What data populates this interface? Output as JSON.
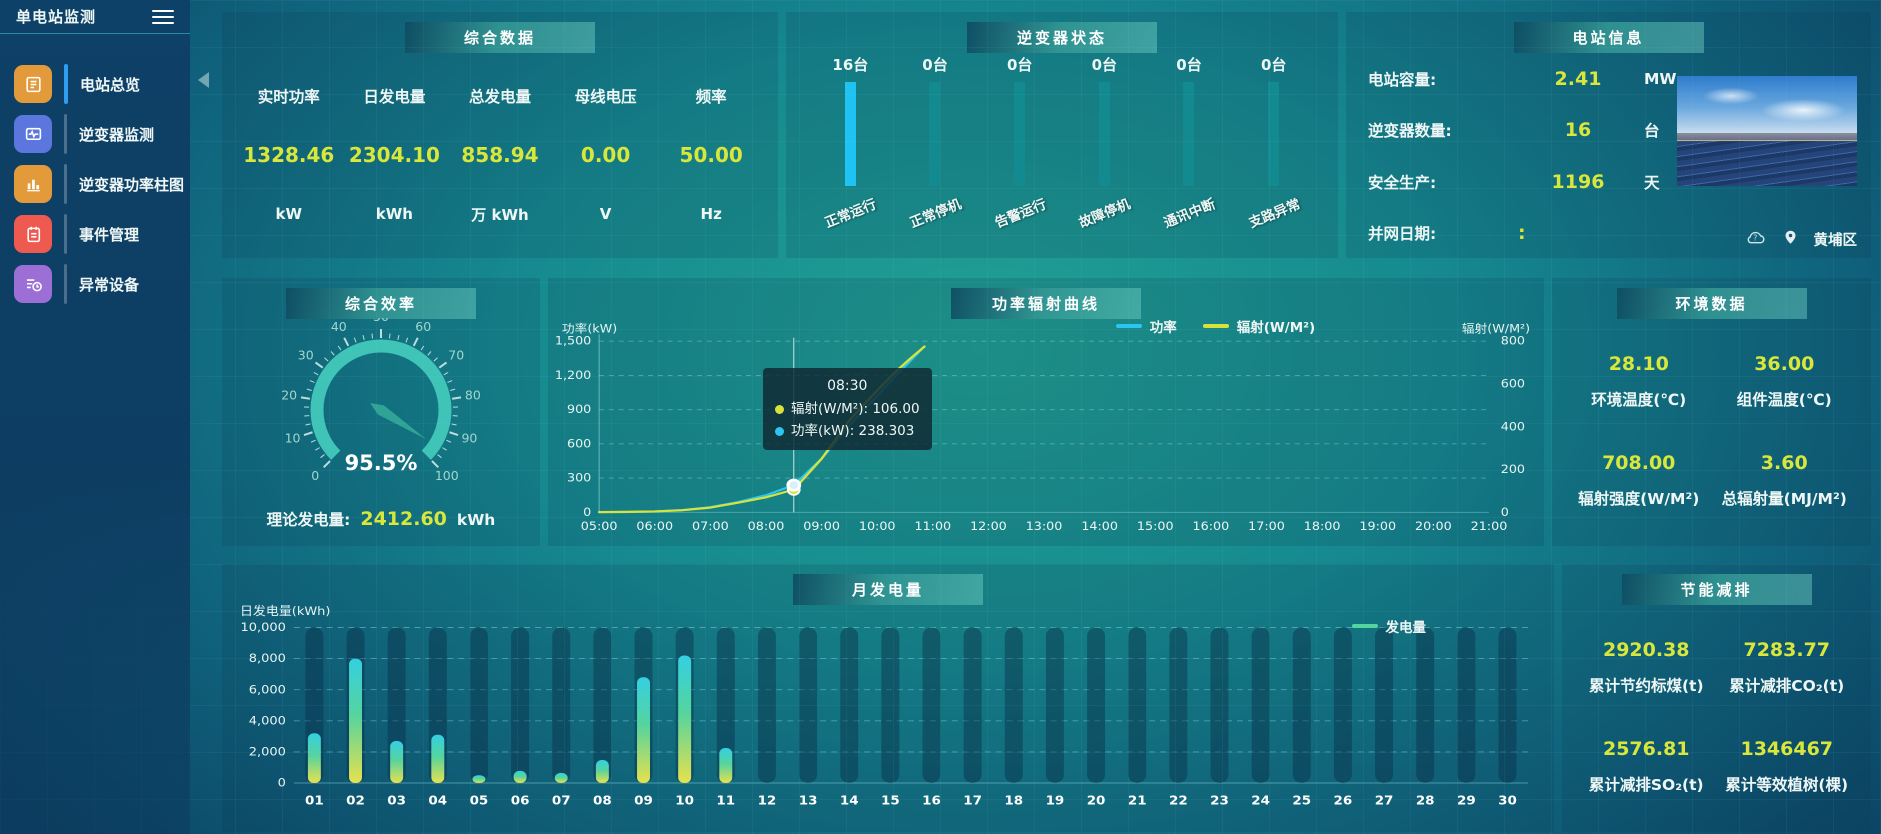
{
  "app": {
    "title": "单电站监测"
  },
  "sidebar": {
    "items": [
      {
        "label": "电站总览",
        "icon": "report-icon",
        "active": true
      },
      {
        "label": "逆变器监测",
        "icon": "monitor-wave-icon",
        "active": false
      },
      {
        "label": "逆变器功率柱图",
        "icon": "bar-chart-icon",
        "active": false
      },
      {
        "label": "事件管理",
        "icon": "notebook-icon",
        "active": false
      },
      {
        "label": "异常设备",
        "icon": "list-clock-icon",
        "active": false
      }
    ]
  },
  "colors": {
    "value_yellow": "#d9e73b",
    "inverter_highlight": "#1fc3f3",
    "inverter_normal": "#128a90",
    "sidebar_active": "#2f9df0"
  },
  "summary": {
    "title": "综合数据",
    "stats": [
      {
        "label": "实时功率",
        "value": "1328.46",
        "unit": "kW"
      },
      {
        "label": "日发电量",
        "value": "2304.10",
        "unit": "kWh"
      },
      {
        "label": "总发电量",
        "value": "858.94",
        "unit": "万 kWh"
      },
      {
        "label": "母线电压",
        "value": "0.00",
        "unit": "V"
      },
      {
        "label": "频率",
        "value": "50.00",
        "unit": "Hz"
      }
    ]
  },
  "inverter_status": {
    "title": "逆变器状态",
    "bars": [
      {
        "count": "16台",
        "label": "正常运行",
        "highlight": true
      },
      {
        "count": "0台",
        "label": "正常停机",
        "highlight": false
      },
      {
        "count": "0台",
        "label": "告警运行",
        "highlight": false
      },
      {
        "count": "0台",
        "label": "故障停机",
        "highlight": false
      },
      {
        "count": "0台",
        "label": "通讯中断",
        "highlight": false
      },
      {
        "count": "0台",
        "label": "支路异常",
        "highlight": false
      }
    ]
  },
  "station_info": {
    "title": "电站信息",
    "rows": [
      {
        "label": "电站容量:",
        "value": "2.41",
        "unit": "MW"
      },
      {
        "label": "逆变器数量:",
        "value": "16",
        "unit": "台"
      },
      {
        "label": "安全生产:",
        "value": "1196",
        "unit": "天"
      },
      {
        "label": "并网日期:",
        "value": ":",
        "unit": ""
      }
    ],
    "weather_icon": "cloud-unknown-icon",
    "location_icon": "location-pin-icon",
    "location": "黄埔区"
  },
  "efficiency": {
    "title": "综合效率",
    "footer_label": "理论发电量:",
    "footer_value": "2412.60",
    "footer_unit": "kWh"
  },
  "power_curve": {
    "title": "功率辐射曲线"
  },
  "environment": {
    "title": "环境数据",
    "stats": [
      {
        "value": "28.10",
        "label": "环境温度(℃)"
      },
      {
        "value": "36.00",
        "label": "组件温度(℃)"
      },
      {
        "value": "708.00",
        "label": "辐射强度(W/M²)"
      },
      {
        "value": "3.60",
        "label": "总辐射量(MJ/M²)"
      }
    ]
  },
  "monthly": {
    "title": "月发电量"
  },
  "saving": {
    "title": "节能减排",
    "stats": [
      {
        "value": "2920.38",
        "label": "累计节约标煤(t)"
      },
      {
        "value": "7283.77",
        "label": "累计减排CO₂(t)"
      },
      {
        "value": "2576.81",
        "label": "累计减排SO₂(t)"
      },
      {
        "value": "1346467",
        "label": "累计等效植树(棵)"
      }
    ]
  },
  "chart_data": [
    {
      "type": "gauge",
      "panel": "efficiency",
      "value": 95.5,
      "display": "95.5%",
      "min": 0,
      "max": 100,
      "label_step": 10,
      "arc_color": "#3fc4b7",
      "needle_color": "#2fa395",
      "tick_color": "#d9f1ec"
    },
    {
      "type": "line",
      "panel": "power_curve",
      "x_start": 5,
      "x_end": 21,
      "x_labels": [
        "05:00",
        "06:00",
        "07:00",
        "08:00",
        "09:00",
        "10:00",
        "11:00",
        "12:00",
        "13:00",
        "14:00",
        "15:00",
        "16:00",
        "17:00",
        "18:00",
        "19:00",
        "20:00",
        "21:00"
      ],
      "ylabel_left": "功率(kW)",
      "ylabel_right": "辐射(W/M²)",
      "ylim_left": [
        0,
        1500
      ],
      "yticks_left": [
        0,
        300,
        600,
        900,
        1200,
        1500
      ],
      "ylim_right": [
        0,
        800
      ],
      "yticks_right": [
        0,
        200,
        400,
        600,
        800
      ],
      "legend": [
        {
          "name": "功率",
          "color": "#2cc5f2"
        },
        {
          "name": "辐射(W/M²)",
          "color": "#d9e23c"
        }
      ],
      "series": [
        {
          "name": "功率",
          "axis": "left",
          "color": "#2cc5f2",
          "points": [
            [
              5,
              2
            ],
            [
              5.5,
              3
            ],
            [
              6,
              8
            ],
            [
              6.5,
              20
            ],
            [
              7,
              45
            ],
            [
              7.5,
              90
            ],
            [
              8,
              150
            ],
            [
              8.5,
              238.3
            ],
            [
              9,
              470
            ],
            [
              9.5,
              760
            ],
            [
              10,
              1020
            ],
            [
              10.3,
              1180
            ],
            [
              10.6,
              1330
            ],
            [
              10.8,
              1430
            ]
          ]
        },
        {
          "name": "辐射(W/M²)",
          "axis": "right",
          "color": "#d9e23c",
          "points": [
            [
              5,
              1
            ],
            [
              5.5,
              2
            ],
            [
              6,
              4
            ],
            [
              6.5,
              10
            ],
            [
              7,
              22
            ],
            [
              7.5,
              45
            ],
            [
              8,
              70
            ],
            [
              8.5,
              106
            ],
            [
              9,
              250
            ],
            [
              9.5,
              430
            ],
            [
              10,
              570
            ],
            [
              10.3,
              650
            ],
            [
              10.6,
              720
            ],
            [
              10.85,
              775
            ]
          ]
        }
      ],
      "hover": {
        "x": 8.5,
        "time": "08:30",
        "items": [
          {
            "text": "辐射(W/M²): 106.00",
            "color": "#d9e23c",
            "value": 106
          },
          {
            "text": "功率(kW): 238.303",
            "color": "#2cc5f2",
            "value": 238.303
          }
        ]
      }
    },
    {
      "type": "bar",
      "panel": "monthly",
      "ylabel": "日发电量(kWh)",
      "legend": "发电量",
      "legend_color": "#56d49e",
      "categories": [
        "01",
        "02",
        "03",
        "04",
        "05",
        "06",
        "07",
        "08",
        "09",
        "10",
        "11",
        "12",
        "13",
        "14",
        "15",
        "16",
        "17",
        "18",
        "19",
        "20",
        "21",
        "22",
        "23",
        "24",
        "25",
        "26",
        "27",
        "28",
        "29",
        "30"
      ],
      "values": [
        3200,
        8000,
        2700,
        3100,
        500,
        780,
        650,
        1480,
        6800,
        8200,
        2250,
        0,
        0,
        0,
        0,
        0,
        0,
        0,
        0,
        0,
        0,
        0,
        0,
        0,
        0,
        0,
        0,
        0,
        0,
        0
      ],
      "ylim": [
        0,
        10000
      ],
      "yticks": [
        0,
        2000,
        4000,
        6000,
        8000,
        10000
      ],
      "bar_gradient": [
        "#34cfe2",
        "#55d49e",
        "#e6e14e"
      ],
      "shadow_color": "rgba(9,42,68,0.42)"
    }
  ]
}
